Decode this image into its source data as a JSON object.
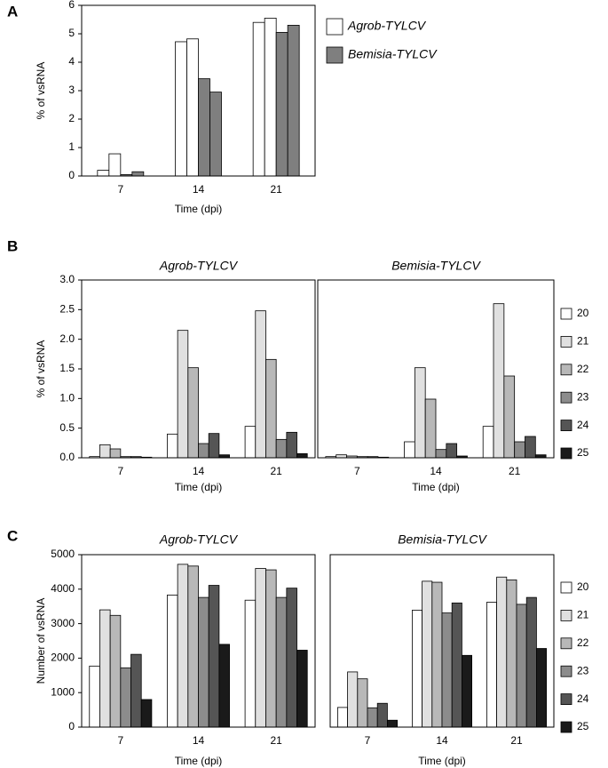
{
  "chart_data": [
    {
      "type": "bar",
      "panel": "A",
      "ylabel": "% of vsRNA",
      "xlabel": "Time (dpi)",
      "categories": [
        "7",
        "14",
        "21"
      ],
      "ylim": [
        0,
        6
      ],
      "yticks": [
        0,
        1,
        2,
        3,
        4,
        5,
        6
      ],
      "series": [
        {
          "name": "Agrob-TYLCV",
          "color": "#ffffff",
          "values": [
            [
              0.2,
              0.78
            ],
            [
              4.72,
              4.82
            ],
            [
              5.4,
              5.55
            ]
          ]
        },
        {
          "name": "Bemisia-TYLCV",
          "color": "#7f7f7f",
          "values": [
            [
              0.05,
              0.15
            ],
            [
              3.42,
              2.95
            ],
            [
              5.05,
              5.3
            ]
          ]
        }
      ]
    },
    {
      "type": "bar",
      "panel": "B",
      "ylabel": "% of vsRNA",
      "xlabel": "Time (dpi)",
      "subplots": [
        "Agrob-TYLCV",
        "Bemisia-TYLCV"
      ],
      "categories": [
        "7",
        "14",
        "21"
      ],
      "ylim": [
        0,
        3
      ],
      "yticks": [
        {
          "value": 0,
          "label": "0.0"
        },
        0.5,
        {
          "value": 1,
          "label": "1.0"
        },
        1.5,
        {
          "value": 2,
          "label": "2.0"
        },
        2.5,
        {
          "value": 3,
          "label": "3.0"
        }
      ],
      "series": [
        {
          "name": "20",
          "color": "#ffffff",
          "values": [
            [
              0.02,
              0.4,
              0.53
            ],
            [
              0.02,
              0.27,
              0.53
            ]
          ]
        },
        {
          "name": "21",
          "color": "#e0e0e0",
          "values": [
            [
              0.22,
              2.15,
              2.48
            ],
            [
              0.05,
              1.52,
              2.6
            ]
          ]
        },
        {
          "name": "22",
          "color": "#b8b8b8",
          "values": [
            [
              0.15,
              1.52,
              1.66
            ],
            [
              0.03,
              0.99,
              1.38
            ]
          ]
        },
        {
          "name": "23",
          "color": "#8c8c8c",
          "values": [
            [
              0.02,
              0.24,
              0.31
            ],
            [
              0.02,
              0.14,
              0.27
            ]
          ]
        },
        {
          "name": "24",
          "color": "#555555",
          "values": [
            [
              0.02,
              0.41,
              0.43
            ],
            [
              0.02,
              0.24,
              0.36
            ]
          ]
        },
        {
          "name": "25",
          "color": "#1a1a1a",
          "values": [
            [
              0.01,
              0.05,
              0.07
            ],
            [
              0.01,
              0.03,
              0.05
            ]
          ]
        }
      ]
    },
    {
      "type": "bar",
      "panel": "C",
      "ylabel": "Number of vsRNA",
      "xlabel": "Time (dpi)",
      "subplots": [
        "Agrob-TYLCV",
        "Bemisia-TYLCV"
      ],
      "categories": [
        "7",
        "14",
        "21"
      ],
      "ylim": [
        0,
        5000
      ],
      "yticks": [
        0,
        1000,
        2000,
        3000,
        4000,
        5000
      ],
      "series": [
        {
          "name": "20",
          "color": "#ffffff",
          "values": [
            [
              1770,
              3830,
              3680
            ],
            [
              570,
              3390,
              3620
            ]
          ]
        },
        {
          "name": "21",
          "color": "#e0e0e0",
          "values": [
            [
              3400,
              4720,
              4600
            ],
            [
              1600,
              4230,
              4350
            ]
          ]
        },
        {
          "name": "22",
          "color": "#b8b8b8",
          "values": [
            [
              3240,
              4670,
              4560
            ],
            [
              1400,
              4200,
              4270
            ]
          ]
        },
        {
          "name": "23",
          "color": "#8c8c8c",
          "values": [
            [
              1720,
              3760,
              3760
            ],
            [
              560,
              3310,
              3560
            ]
          ]
        },
        {
          "name": "24",
          "color": "#555555",
          "values": [
            [
              2110,
              4110,
              4030
            ],
            [
              690,
              3600,
              3760
            ]
          ]
        },
        {
          "name": "25",
          "color": "#1a1a1a",
          "values": [
            [
              800,
              2400,
              2230
            ],
            [
              200,
              2080,
              2280
            ]
          ]
        }
      ]
    }
  ]
}
